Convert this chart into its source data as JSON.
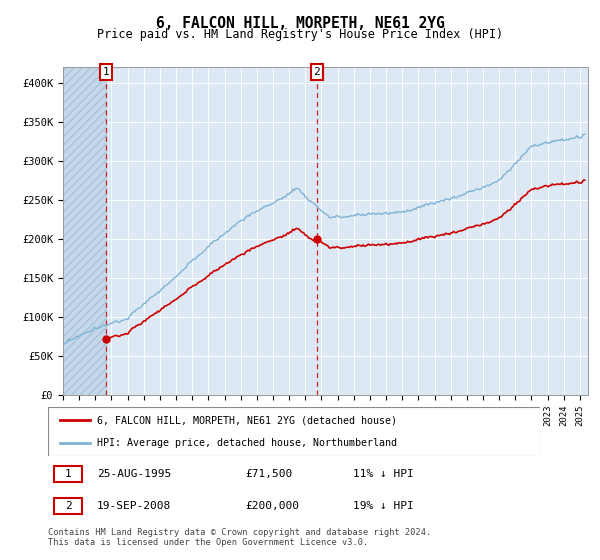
{
  "title": "6, FALCON HILL, MORPETH, NE61 2YG",
  "subtitle": "Price paid vs. HM Land Registry's House Price Index (HPI)",
  "ylim": [
    0,
    420000
  ],
  "yticks": [
    0,
    50000,
    100000,
    150000,
    200000,
    250000,
    300000,
    350000,
    400000
  ],
  "ytick_labels": [
    "£0",
    "£50K",
    "£100K",
    "£150K",
    "£200K",
    "£250K",
    "£300K",
    "£350K",
    "£400K"
  ],
  "background_color": "#dce9f5",
  "hpi_color": "#7fb3d3",
  "price_color": "#cc0000",
  "sale1_year": 1995.65,
  "sale1_price": 71500,
  "sale2_year": 2008.72,
  "sale2_price": 200000,
  "legend_label1": "6, FALCON HILL, MORPETH, NE61 2YG (detached house)",
  "legend_label2": "HPI: Average price, detached house, Northumberland",
  "xmin": 1993.0,
  "xmax": 2025.5
}
